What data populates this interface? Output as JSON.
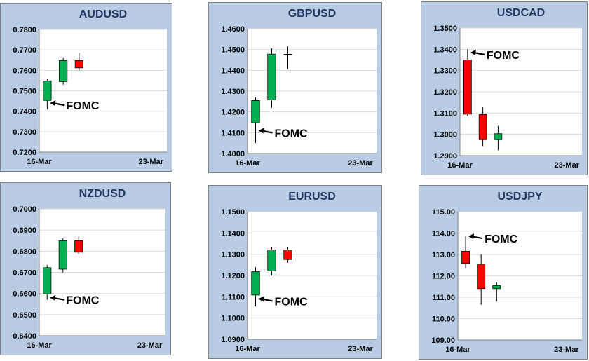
{
  "colors": {
    "panel_bg": "#b8cce4",
    "panel_border": "#7f7f7f",
    "plot_bg": "#ffffff",
    "grid": "#d9d9d9",
    "axis": "#808080",
    "up": "#00b050",
    "down": "#ff0000",
    "doji": "#000000",
    "wick": "#000000"
  },
  "chart_data": [
    {
      "type": "candlestick",
      "title": "AUDUSD",
      "grid": "horizontal",
      "ylim": [
        0.72,
        0.78
      ],
      "yticks": [
        "0.7200",
        "0.7300",
        "0.7400",
        "0.7500",
        "0.7600",
        "0.7700",
        "0.7800"
      ],
      "xlim": [
        0,
        8
      ],
      "xticks": [
        {
          "x": 0,
          "label": "16-Mar"
        },
        {
          "x": 7,
          "label": "23-Mar"
        }
      ],
      "candles": [
        {
          "x": 0.5,
          "open": 0.7453,
          "high": 0.756,
          "low": 0.741,
          "close": 0.7548
        },
        {
          "x": 1.5,
          "open": 0.7545,
          "high": 0.766,
          "low": 0.753,
          "close": 0.7648
        },
        {
          "x": 2.5,
          "open": 0.7648,
          "high": 0.7685,
          "low": 0.76,
          "close": 0.7612
        }
      ],
      "annotations": [
        {
          "text": "FOMC",
          "x": 0.5,
          "y": 0.744
        }
      ]
    },
    {
      "type": "candlestick",
      "title": "GBPUSD",
      "grid": "horizontal",
      "ylim": [
        1.4,
        1.46
      ],
      "yticks": [
        "1.4000",
        "1.4100",
        "1.4200",
        "1.4300",
        "1.4400",
        "1.4500",
        "1.4600"
      ],
      "xlim": [
        0,
        8
      ],
      "xticks": [
        {
          "x": 0,
          "label": "16-Mar"
        },
        {
          "x": 7,
          "label": "23-Mar"
        }
      ],
      "candles": [
        {
          "x": 0.5,
          "open": 1.4148,
          "high": 1.427,
          "low": 1.405,
          "close": 1.4255
        },
        {
          "x": 1.5,
          "open": 1.4258,
          "high": 1.4505,
          "low": 1.422,
          "close": 1.4478
        },
        {
          "x": 2.5,
          "open": 1.4478,
          "high": 1.4515,
          "low": 1.4405,
          "close": 1.4474
        }
      ],
      "annotations": [
        {
          "text": "FOMC",
          "x": 0.5,
          "y": 1.411
        }
      ]
    },
    {
      "type": "candlestick",
      "title": "USDCAD",
      "grid": "horizontal",
      "ylim": [
        1.29,
        1.35
      ],
      "yticks": [
        "1.2900",
        "1.3000",
        "1.3100",
        "1.3200",
        "1.3300",
        "1.3400",
        "1.3500"
      ],
      "xlim": [
        0,
        8
      ],
      "xticks": [
        {
          "x": 0,
          "label": "16-Mar"
        },
        {
          "x": 7,
          "label": "23-Mar"
        }
      ],
      "candles": [
        {
          "x": 0.5,
          "open": 1.335,
          "high": 1.34,
          "low": 1.3085,
          "close": 1.3095
        },
        {
          "x": 1.5,
          "open": 1.3093,
          "high": 1.313,
          "low": 1.2945,
          "close": 1.2975
        },
        {
          "x": 2.5,
          "open": 1.2975,
          "high": 1.304,
          "low": 1.2925,
          "close": 1.3003
        }
      ],
      "annotations": [
        {
          "text": "FOMC",
          "x": 0.5,
          "y": 1.3385
        }
      ]
    },
    {
      "type": "candlestick",
      "title": "NZDUSD",
      "grid": "horizontal",
      "ylim": [
        0.64,
        0.7
      ],
      "yticks": [
        "0.6400",
        "0.6500",
        "0.6600",
        "0.6700",
        "0.6800",
        "0.6900",
        "0.7000"
      ],
      "xlim": [
        0,
        8
      ],
      "xticks": [
        {
          "x": 0,
          "label": "16-Mar"
        },
        {
          "x": 7,
          "label": "23-Mar"
        }
      ],
      "candles": [
        {
          "x": 0.5,
          "open": 0.6598,
          "high": 0.6735,
          "low": 0.657,
          "close": 0.6722
        },
        {
          "x": 1.5,
          "open": 0.6715,
          "high": 0.686,
          "low": 0.67,
          "close": 0.685
        },
        {
          "x": 2.5,
          "open": 0.685,
          "high": 0.6872,
          "low": 0.6785,
          "close": 0.6795
        }
      ],
      "annotations": [
        {
          "text": "FOMC",
          "x": 0.5,
          "y": 0.658
        }
      ]
    },
    {
      "type": "candlestick",
      "title": "EURUSD",
      "grid": "horizontal",
      "ylim": [
        1.09,
        1.15
      ],
      "yticks": [
        "1.0900",
        "1.1000",
        "1.1100",
        "1.1200",
        "1.1300",
        "1.1400",
        "1.1500"
      ],
      "xlim": [
        0,
        8
      ],
      "xticks": [
        {
          "x": 0,
          "label": "16-Mar"
        },
        {
          "x": 7,
          "label": "23-Mar"
        }
      ],
      "candles": [
        {
          "x": 0.5,
          "open": 1.1108,
          "high": 1.124,
          "low": 1.1055,
          "close": 1.1218
        },
        {
          "x": 1.5,
          "open": 1.1222,
          "high": 1.1335,
          "low": 1.12,
          "close": 1.132
        },
        {
          "x": 2.5,
          "open": 1.132,
          "high": 1.1335,
          "low": 1.126,
          "close": 1.1275
        }
      ],
      "annotations": [
        {
          "text": "FOMC",
          "x": 0.5,
          "y": 1.109
        }
      ]
    },
    {
      "type": "candlestick",
      "title": "USDJPY",
      "grid": "horizontal",
      "ylim": [
        109.0,
        115.0
      ],
      "yticks": [
        "109.00",
        "110.00",
        "111.00",
        "112.00",
        "113.00",
        "114.00",
        "115.00"
      ],
      "xlim": [
        0,
        8
      ],
      "xticks": [
        {
          "x": 0,
          "label": "16-Mar"
        },
        {
          "x": 7,
          "label": "23-Mar"
        }
      ],
      "candles": [
        {
          "x": 0.5,
          "open": 113.15,
          "high": 113.85,
          "low": 112.35,
          "close": 112.58
        },
        {
          "x": 1.5,
          "open": 112.55,
          "high": 113.0,
          "low": 110.65,
          "close": 111.4
        },
        {
          "x": 2.5,
          "open": 111.4,
          "high": 111.7,
          "low": 110.8,
          "close": 111.55
        }
      ],
      "annotations": [
        {
          "text": "FOMC",
          "x": 0.5,
          "y": 113.85
        }
      ]
    }
  ]
}
